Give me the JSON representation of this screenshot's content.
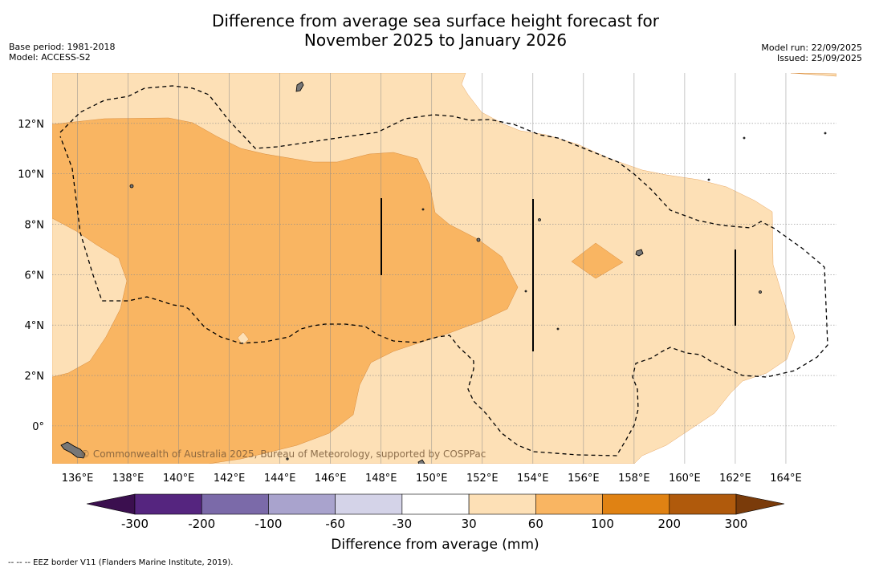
{
  "title": {
    "line1": "Difference from average sea surface height forecast for",
    "line2": "November 2025 to January 2026"
  },
  "meta": {
    "base_period": "Base period: 1981-2018",
    "model": "Model: ACCESS-S2",
    "model_run": "Model run: 22/09/2025",
    "issued": "Issued: 25/09/2025"
  },
  "map": {
    "lon_labels": [
      "136°E",
      "138°E",
      "140°E",
      "142°E",
      "144°E",
      "146°E",
      "148°E",
      "150°E",
      "152°E",
      "154°E",
      "156°E",
      "158°E",
      "160°E",
      "162°E",
      "164°E"
    ],
    "lat_labels": [
      "12°N",
      "10°N",
      "8°N",
      "6°N",
      "4°N",
      "2°N",
      "0°"
    ],
    "watermark": "© Commonwealth of Australia 2025, Bureau of Meteorology, supported by COSPPac",
    "lon_range": [
      135,
      166
    ],
    "lat_range": [
      -1.5,
      14
    ]
  },
  "legend": {
    "label": "Difference from average (mm)",
    "ticks": [
      "-300",
      "-200",
      "-100",
      "-60",
      "-30",
      "30",
      "60",
      "100",
      "200",
      "300"
    ],
    "colors": [
      "#3b0f4f",
      "#55257f",
      "#7b6aa9",
      "#a9a3cd",
      "#d4d3e8",
      "#ffffff",
      "#fde0b6",
      "#f9b562",
      "#e08213",
      "#b05a0c",
      "#7a3b0a"
    ]
  },
  "footnote": {
    "text": "--  --  -- EEZ border V11 (Flanders Marine Institute, 2019)."
  }
}
